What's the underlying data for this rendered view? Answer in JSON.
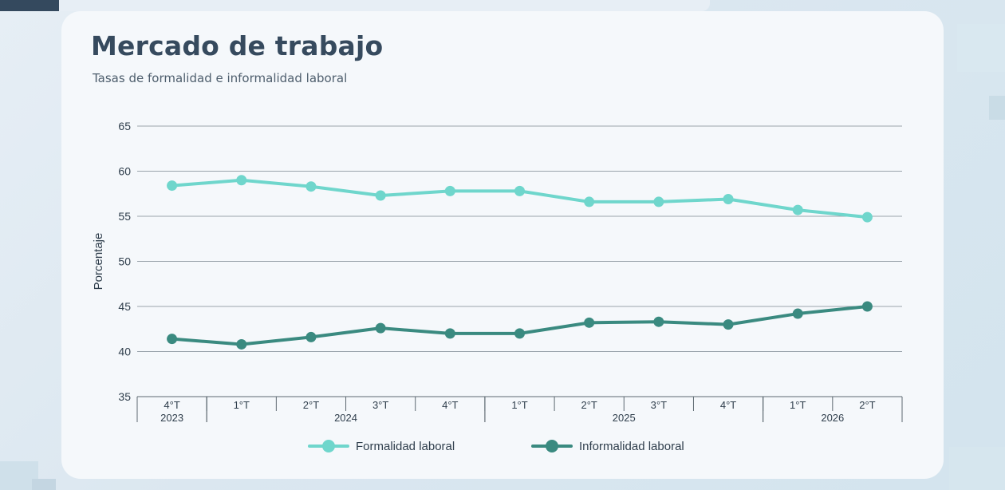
{
  "header": {
    "title": "Mercado de trabajo",
    "subtitle": "Tasas de formalidad e informalidad laboral"
  },
  "colors": {
    "formalidad": "#6fd6cc",
    "informalidad": "#3a8a80",
    "grid": "#9aa3ab",
    "text": "#2f3e4c"
  },
  "chart_data": {
    "type": "line",
    "ylabel": "Porcentaje",
    "ylim": [
      35,
      65
    ],
    "yticks": [
      35,
      40,
      45,
      50,
      55,
      60,
      65
    ],
    "grid": true,
    "legend_position": "bottom",
    "categories": [
      "4°T",
      "1°T",
      "2°T",
      "3°T",
      "4°T",
      "1°T",
      "2°T",
      "3°T",
      "4°T",
      "1°T",
      "2°T"
    ],
    "year_groups": [
      {
        "label": "2023",
        "start": 0,
        "end": 0
      },
      {
        "label": "2024",
        "start": 1,
        "end": 4
      },
      {
        "label": "2025",
        "start": 5,
        "end": 8
      },
      {
        "label": "2026",
        "start": 9,
        "end": 10
      }
    ],
    "series": [
      {
        "name": "Formalidad laboral",
        "values": [
          58.4,
          59.0,
          58.3,
          57.3,
          57.8,
          57.8,
          56.6,
          56.6,
          56.9,
          55.7,
          54.9
        ]
      },
      {
        "name": "Informalidad laboral",
        "values": [
          41.4,
          40.8,
          41.6,
          42.6,
          42.0,
          42.0,
          43.2,
          43.3,
          43.0,
          44.2,
          45.0
        ]
      }
    ]
  }
}
